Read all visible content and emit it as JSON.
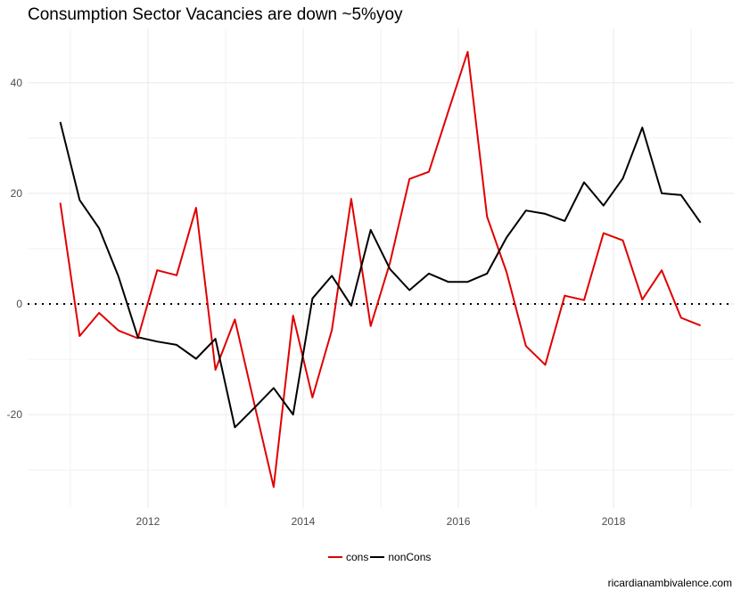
{
  "chart_data": {
    "type": "line",
    "title": "Consumption Sector Vacancies are down ~5%yoy",
    "xlabel": "",
    "ylabel": "",
    "xlim": [
      2010.45,
      2019.55
    ],
    "ylim": [
      -36.9,
      49.8
    ],
    "x_ticks": [
      2012,
      2014,
      2016,
      2018
    ],
    "x_tick_labels": [
      "2012",
      "2014",
      "2016",
      "2018"
    ],
    "x_minor_grid": [
      2011,
      2013,
      2015,
      2017,
      2019
    ],
    "y_ticks": [
      -20,
      0,
      20,
      40
    ],
    "y_tick_labels": [
      "-20",
      "0",
      "20",
      "40"
    ],
    "y_minor_grid": [
      -30,
      -10,
      10,
      30
    ],
    "grid": true,
    "reference_line": {
      "y": 0,
      "style": "dotted",
      "color": "#000000"
    },
    "x": [
      2010.87,
      2011.12,
      2011.37,
      2011.62,
      2011.87,
      2012.12,
      2012.37,
      2012.62,
      2012.87,
      2013.12,
      2013.37,
      2013.62,
      2013.87,
      2014.12,
      2014.37,
      2014.62,
      2014.87,
      2015.12,
      2015.37,
      2015.62,
      2015.87,
      2016.12,
      2016.37,
      2016.62,
      2016.87,
      2017.12,
      2017.37,
      2017.62,
      2017.87,
      2018.12,
      2018.37,
      2018.62,
      2018.87,
      2019.12
    ],
    "series": [
      {
        "name": "cons",
        "color": "#e00000",
        "values": [
          18.3,
          -5.8,
          -1.6,
          -4.8,
          -6.2,
          6.1,
          5.2,
          17.4,
          -11.9,
          -2.8,
          -18.0,
          -33.1,
          -2.1,
          -16.9,
          -4.7,
          19.0,
          -4.0,
          7.5,
          22.6,
          23.9,
          34.8,
          45.6,
          15.8,
          5.8,
          -7.6,
          -11.0,
          1.5,
          0.7,
          12.8,
          11.5,
          0.8,
          6.1,
          -2.5,
          -3.9
        ]
      },
      {
        "name": "nonCons",
        "color": "#000000",
        "values": [
          32.9,
          18.8,
          13.7,
          5.0,
          -6.0,
          -6.8,
          -7.4,
          -9.9,
          -6.3,
          -22.3,
          -18.8,
          -15.2,
          -20.0,
          1.0,
          5.1,
          -0.3,
          13.4,
          6.3,
          2.5,
          5.5,
          4.0,
          4.0,
          5.5,
          12.0,
          16.9,
          16.3,
          15.0,
          22.0,
          17.8,
          22.7,
          31.9,
          20.0,
          19.7,
          14.7
        ]
      }
    ],
    "legend": {
      "position": "bottom",
      "entries": [
        "cons",
        "nonCons"
      ]
    },
    "caption": "ricardianambivalence.com"
  }
}
